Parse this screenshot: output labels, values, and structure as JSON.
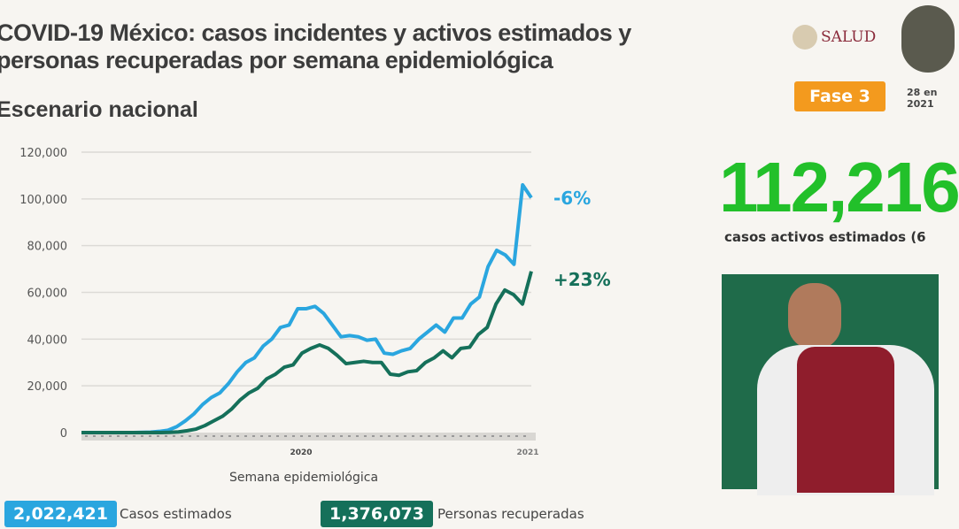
{
  "header": {
    "title_line1": "COVID-19 México: casos incidentes y activos estimados y",
    "title_line2": "personas recuperadas por semana epidemiológica",
    "subtitle": "Escenario nacional",
    "logo_text": "SALUD",
    "phase": "Fase 3",
    "date_line1": "28 en",
    "date_line2": "2021"
  },
  "kpi": {
    "value": "112,216",
    "label": "casos activos estimados (6"
  },
  "legend": {
    "cases_value": "2,022,421",
    "cases_label": "Casos estimados",
    "recovered_value": "1,376,073",
    "recovered_label": "Personas recuperadas"
  },
  "colors": {
    "cases": "#2aa6df",
    "recovered": "#15705a",
    "kpi": "#22c02a",
    "phase": "#f39a1e"
  },
  "chart_data": {
    "type": "line",
    "title": "COVID-19 México: casos incidentes y activos estimados y personas recuperadas por semana epidemiológica",
    "xlabel": "Semana epidemiológica",
    "ylabel": "",
    "ylim": [
      0,
      120000
    ],
    "yticks": [
      "0",
      "20,000",
      "40,000",
      "60,000",
      "80,000",
      "100,000",
      "120,000"
    ],
    "xticks": [
      "2020",
      "2021"
    ],
    "grid": true,
    "series": [
      {
        "name": "Casos estimados",
        "change": "-6%",
        "values": [
          0,
          0,
          0,
          0,
          0,
          0,
          0,
          100,
          200,
          500,
          1000,
          2500,
          5000,
          8000,
          12000,
          15000,
          17000,
          21000,
          26000,
          30000,
          32000,
          37000,
          40000,
          45000,
          46000,
          53000,
          53000,
          54000,
          51000,
          46000,
          41000,
          41500,
          41000,
          39500,
          40000,
          34000,
          33500,
          35000,
          36000,
          40000,
          43000,
          46000,
          43000,
          49000,
          49000,
          55000,
          58000,
          71000,
          78000,
          76000,
          72000,
          106000,
          100500
        ]
      },
      {
        "name": "Personas recuperadas",
        "change": "+23%",
        "values": [
          0,
          0,
          0,
          0,
          0,
          0,
          0,
          0,
          0,
          0,
          100,
          300,
          800,
          1500,
          3000,
          5000,
          7000,
          10000,
          14000,
          17000,
          19000,
          23000,
          25000,
          28000,
          29000,
          34000,
          36000,
          37500,
          36000,
          33000,
          29500,
          30000,
          30500,
          30000,
          30000,
          25000,
          24500,
          26000,
          26500,
          30000,
          32000,
          35000,
          32000,
          36000,
          36500,
          42000,
          45000,
          55000,
          61000,
          59000,
          55000,
          69000
        ]
      }
    ]
  }
}
